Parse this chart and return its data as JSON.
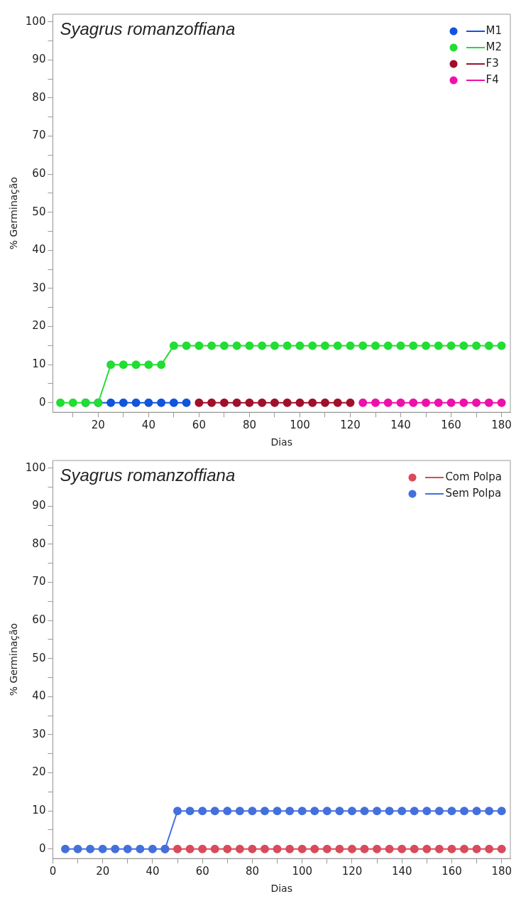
{
  "chart_data": [
    {
      "type": "line",
      "title": "Syagrus romanzoffiana",
      "xlabel": "Dias",
      "ylabel": "% Germinação",
      "legend": "top right",
      "marker": "circle",
      "grid": false,
      "x": [
        5,
        10,
        15,
        20,
        25,
        30,
        35,
        40,
        45,
        50,
        55,
        60,
        65,
        70,
        75,
        80,
        85,
        90,
        95,
        100,
        105,
        110,
        115,
        120,
        125,
        130,
        135,
        140,
        145,
        150,
        155,
        160,
        165,
        170,
        175,
        180
      ],
      "xlim": [
        2,
        183.5
      ],
      "ylim": [
        -2.5,
        102
      ],
      "xticks": [
        {
          "value": 10,
          "label": null
        },
        20,
        {
          "value": 30,
          "label": null
        },
        40,
        {
          "value": 50,
          "label": null
        },
        60,
        {
          "value": 70,
          "label": null
        },
        80,
        {
          "value": 90,
          "label": null
        },
        100,
        {
          "value": 110,
          "label": null
        },
        120,
        {
          "value": 130,
          "label": null
        },
        140,
        {
          "value": 150,
          "label": null
        },
        160,
        {
          "value": 170,
          "label": null
        },
        180
      ],
      "yticks": [
        0,
        {
          "value": 5,
          "label": null
        },
        10,
        {
          "value": 15,
          "label": null
        },
        20,
        {
          "value": 25,
          "label": null
        },
        30,
        {
          "value": 35,
          "label": null
        },
        40,
        {
          "value": 45,
          "label": null
        },
        50,
        {
          "value": 55,
          "label": null
        },
        60,
        {
          "value": 65,
          "label": null
        },
        70,
        {
          "value": 75,
          "label": null
        },
        80,
        {
          "value": 85,
          "label": null
        },
        90,
        {
          "value": 95,
          "label": null
        },
        100
      ],
      "series": [
        {
          "name": "M1",
          "color": "#1155dd",
          "values": [
            null,
            null,
            0,
            0,
            0,
            0,
            0,
            0,
            0,
            0,
            0,
            null,
            null,
            null,
            null,
            null,
            null,
            null,
            null,
            null,
            null,
            null,
            null,
            null,
            null,
            null,
            null,
            null,
            null,
            null,
            null,
            null,
            null,
            null,
            null,
            null
          ]
        },
        {
          "name": "M2",
          "color": "#22dd33",
          "values": [
            0,
            0,
            0,
            0,
            10,
            10,
            10,
            10,
            10,
            15,
            15,
            15,
            15,
            15,
            15,
            15,
            15,
            15,
            15,
            15,
            15,
            15,
            15,
            15,
            15,
            15,
            15,
            15,
            15,
            15,
            15,
            15,
            15,
            15,
            15,
            15
          ]
        },
        {
          "name": "F3",
          "color": "#a0102a",
          "values": [
            null,
            null,
            null,
            null,
            null,
            null,
            null,
            null,
            null,
            null,
            null,
            0,
            0,
            0,
            0,
            0,
            0,
            0,
            0,
            0,
            0,
            0,
            0,
            0,
            null,
            null,
            null,
            null,
            null,
            null,
            null,
            null,
            null,
            null,
            null,
            null
          ]
        },
        {
          "name": "F4",
          "color": "#ee10aa",
          "values": [
            null,
            null,
            null,
            null,
            null,
            null,
            null,
            null,
            null,
            null,
            null,
            null,
            null,
            null,
            null,
            null,
            null,
            null,
            null,
            null,
            null,
            null,
            null,
            null,
            0,
            0,
            0,
            0,
            0,
            0,
            0,
            0,
            0,
            0,
            0,
            0
          ]
        }
      ]
    },
    {
      "type": "line",
      "title": "Syagrus romanzoffiana",
      "xlabel": "Dias",
      "ylabel": "% Germinação",
      "legend": "top right",
      "marker": "circle",
      "grid": false,
      "x": [
        5,
        10,
        15,
        20,
        25,
        30,
        35,
        40,
        45,
        50,
        55,
        60,
        65,
        70,
        75,
        80,
        85,
        90,
        95,
        100,
        105,
        110,
        115,
        120,
        125,
        130,
        135,
        140,
        145,
        150,
        155,
        160,
        165,
        170,
        175,
        180
      ],
      "xlim": [
        0,
        183.5
      ],
      "ylim": [
        -2.5,
        102
      ],
      "xticks": [
        0,
        {
          "value": 10,
          "label": null
        },
        20,
        {
          "value": 30,
          "label": null
        },
        40,
        {
          "value": 50,
          "label": null
        },
        60,
        {
          "value": 70,
          "label": null
        },
        80,
        {
          "value": 90,
          "label": null
        },
        100,
        {
          "value": 110,
          "label": null
        },
        120,
        {
          "value": 130,
          "label": null
        },
        140,
        {
          "value": 150,
          "label": null
        },
        160,
        {
          "value": 170,
          "label": null
        },
        180
      ],
      "yticks": [
        0,
        {
          "value": 5,
          "label": null
        },
        10,
        {
          "value": 15,
          "label": null
        },
        20,
        {
          "value": 25,
          "label": null
        },
        30,
        {
          "value": 35,
          "label": null
        },
        40,
        {
          "value": 45,
          "label": null
        },
        50,
        {
          "value": 55,
          "label": null
        },
        60,
        {
          "value": 65,
          "label": null
        },
        70,
        {
          "value": 75,
          "label": null
        },
        80,
        {
          "value": 85,
          "label": null
        },
        90,
        {
          "value": 95,
          "label": null
        },
        100
      ],
      "series": [
        {
          "name": "Com Polpa",
          "color": "#d94a5a",
          "values": [
            null,
            null,
            null,
            null,
            null,
            null,
            null,
            null,
            0,
            0,
            0,
            0,
            0,
            0,
            0,
            0,
            0,
            0,
            0,
            0,
            0,
            0,
            0,
            0,
            0,
            0,
            0,
            0,
            0,
            0,
            0,
            0,
            0,
            0,
            0,
            0
          ]
        },
        {
          "name": "Sem Polpa",
          "color": "#4470dd",
          "values": [
            0,
            0,
            0,
            0,
            0,
            0,
            0,
            0,
            0,
            10,
            10,
            10,
            10,
            10,
            10,
            10,
            10,
            10,
            10,
            10,
            10,
            10,
            10,
            10,
            10,
            10,
            10,
            10,
            10,
            10,
            10,
            10,
            10,
            10,
            10,
            10
          ]
        }
      ]
    }
  ]
}
